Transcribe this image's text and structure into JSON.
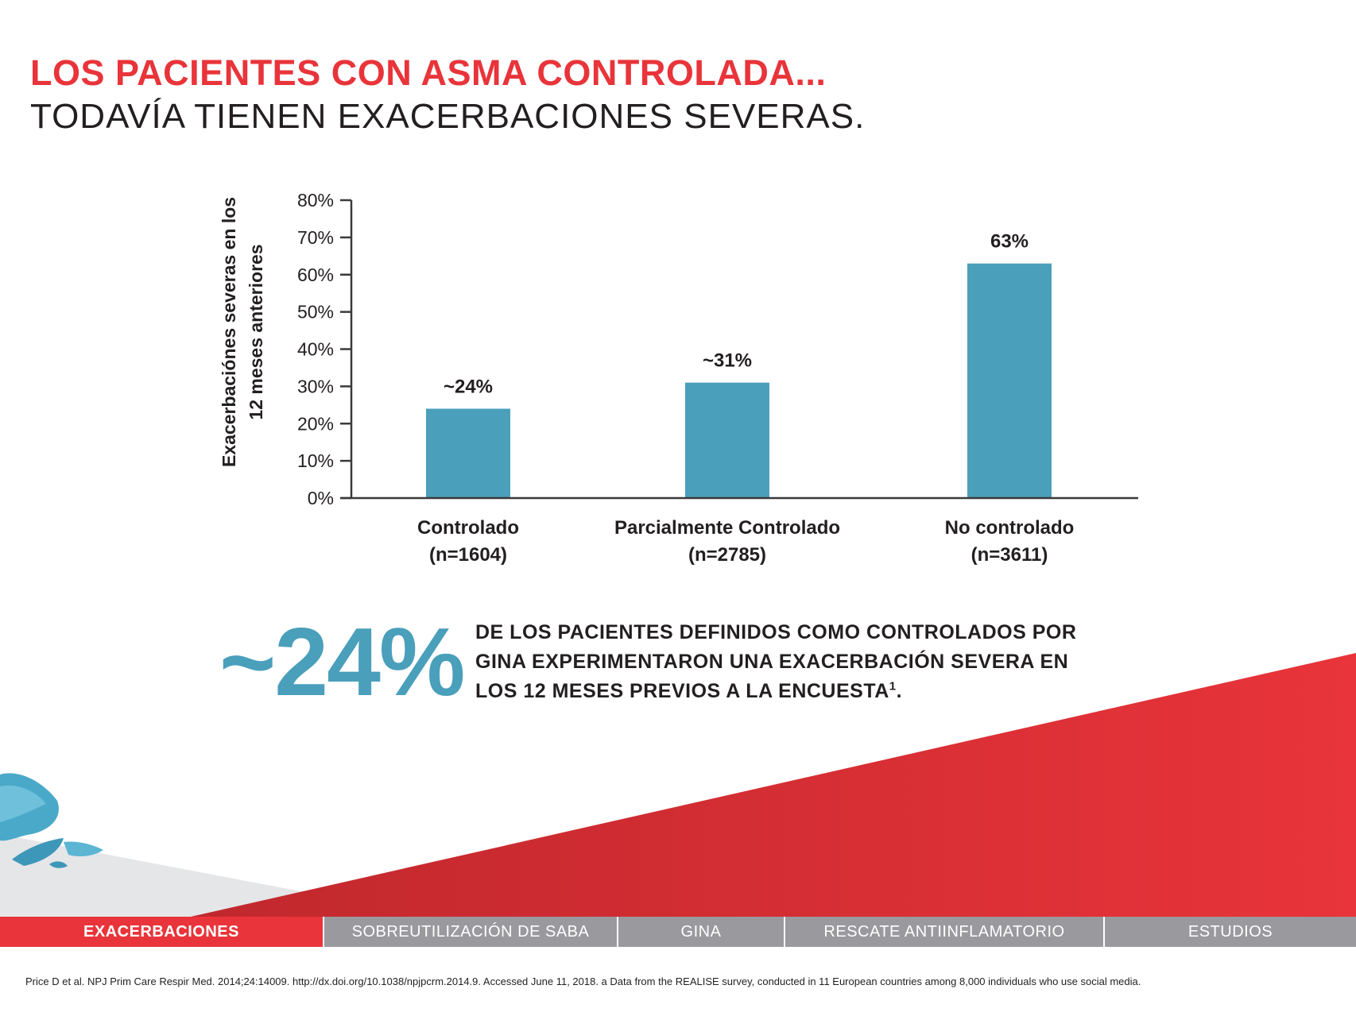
{
  "header": {
    "title_line1": "LOS PACIENTES CON ASMA CONTROLADA...",
    "title_line2": "TODAVÍA TIENEN EXACERBACIONES SEVERAS."
  },
  "chart_data": {
    "type": "bar",
    "ylabel_line1": "Exacerbaciónes severas en los",
    "ylabel_line2": "12 meses anteriores",
    "ylim": [
      0,
      80
    ],
    "yticks": [
      "0%",
      "10%",
      "20%",
      "30%",
      "40%",
      "50%",
      "60%",
      "70%",
      "80%"
    ],
    "categories": [
      {
        "name": "Controlado",
        "n": "(n=1604)"
      },
      {
        "name": "Parcialmente Controlado",
        "n": "(n=2785)"
      },
      {
        "name": "No controlado",
        "n": "(n=3611)"
      }
    ],
    "values": [
      24,
      31,
      63
    ],
    "data_labels": [
      "~24%",
      "~31%",
      "63%"
    ],
    "bar_color": "#4a9fbb",
    "grid": false
  },
  "callout": {
    "number": "~24%",
    "text": "DE LOS PACIENTES DEFINIDOS COMO CONTROLADOS POR GINA EXPERIMENTARON UNA EXACERBACIÓN SEVERA EN LOS 12 MESES PREVIOS A LA ENCUESTA",
    "superscript": "1",
    "end": "."
  },
  "nav": {
    "items": [
      {
        "label": "EXACERBACIONES",
        "active": true
      },
      {
        "label": "SOBREUTILIZACIÓN DE SABA",
        "active": false
      },
      {
        "label": "GINA",
        "active": false
      },
      {
        "label": "RESCATE ANTIINFLAMATORIO",
        "active": false
      },
      {
        "label": "ESTUDIOS",
        "active": false
      }
    ]
  },
  "footnote": "Price D et al. NPJ Prim Care Respir Med. 2014;24:14009. http://dx.doi.org/10.1038/npjpcrm.2014.9. Accessed June 11, 2018. a Data from the REALISE survey, conducted in 11 European countries among 8,000 individuals who use social media.",
  "colors": {
    "brand_red": "#e8343a",
    "accent_blue": "#4a9fbb",
    "nav_grey": "#9a999e"
  }
}
